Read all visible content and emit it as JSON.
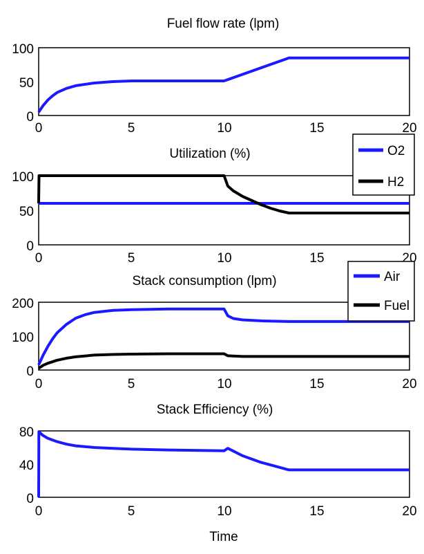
{
  "chart_data": [
    {
      "type": "line",
      "title": "Fuel flow rate (lpm)",
      "xlabel": "",
      "ylabel": "",
      "xlim": [
        0,
        20
      ],
      "ylim": [
        0,
        100
      ],
      "xticks": [
        "0",
        "5",
        "10",
        "15",
        "20"
      ],
      "yticks": [
        "0",
        "50",
        "100"
      ],
      "grid": false,
      "series": [
        {
          "color": "#1a1aff",
          "x": [
            0,
            0.25,
            0.5,
            0.75,
            1.0,
            1.5,
            2.0,
            3.0,
            4.0,
            5.0,
            7.0,
            10.0,
            13.5,
            20.0
          ],
          "y": [
            5,
            15,
            23,
            29,
            34,
            40,
            44,
            48,
            50,
            51,
            51,
            51,
            85,
            85
          ]
        }
      ]
    },
    {
      "type": "line",
      "title": "Utilization (%)",
      "xlabel": "",
      "ylabel": "",
      "xlim": [
        0,
        20
      ],
      "ylim": [
        0,
        100
      ],
      "xticks": [
        "0",
        "5",
        "10",
        "15",
        "20"
      ],
      "yticks": [
        "0",
        "50",
        "100"
      ],
      "grid": false,
      "legend": {
        "placement": "outside top-right",
        "entries": [
          "O2",
          "H2"
        ]
      },
      "series": [
        {
          "name": "O2",
          "color": "#1a1aff",
          "x": [
            0,
            20
          ],
          "y": [
            60,
            60
          ]
        },
        {
          "name": "H2",
          "color": "#000000",
          "x": [
            0,
            0.02,
            10.0,
            10.2,
            10.5,
            11.0,
            11.5,
            12.0,
            12.5,
            13.0,
            13.5,
            20.0
          ],
          "y": [
            60,
            100,
            100,
            85,
            78,
            70,
            64,
            58,
            53,
            49,
            46,
            46
          ]
        }
      ]
    },
    {
      "type": "line",
      "title": "Stack consumption (lpm)",
      "xlabel": "",
      "ylabel": "",
      "xlim": [
        0,
        20
      ],
      "ylim": [
        0,
        200
      ],
      "xticks": [
        "0",
        "5",
        "10",
        "15",
        "20"
      ],
      "yticks": [
        "0",
        "100",
        "200"
      ],
      "grid": false,
      "legend": {
        "placement": "outside top-right",
        "entries": [
          "Air",
          "Fuel"
        ]
      },
      "series": [
        {
          "name": "Air",
          "color": "#1a1aff",
          "x": [
            0,
            0.25,
            0.5,
            0.75,
            1.0,
            1.5,
            2.0,
            2.5,
            3.0,
            4.0,
            5.0,
            7.0,
            10.0,
            10.2,
            10.5,
            11.0,
            12.0,
            13.5,
            20.0
          ],
          "y": [
            15,
            45,
            70,
            92,
            110,
            135,
            153,
            163,
            170,
            176,
            178,
            180,
            180,
            160,
            152,
            148,
            145,
            143,
            143
          ]
        },
        {
          "name": "Fuel",
          "color": "#000000",
          "x": [
            0,
            0.25,
            0.5,
            1.0,
            1.5,
            2.0,
            3.0,
            4.0,
            5.0,
            7.0,
            10.0,
            10.2,
            11.0,
            13.5,
            20.0
          ],
          "y": [
            5,
            14,
            20,
            29,
            35,
            39,
            44,
            46,
            47,
            48,
            48,
            42,
            40,
            40,
            40
          ]
        }
      ]
    },
    {
      "type": "line",
      "title": "Stack Efficiency (%)",
      "xlabel": "Time",
      "ylabel": "",
      "xlim": [
        0,
        20
      ],
      "ylim": [
        0,
        80
      ],
      "xticks": [
        "0",
        "5",
        "10",
        "15",
        "20"
      ],
      "yticks": [
        "0",
        "40",
        "80"
      ],
      "grid": false,
      "series": [
        {
          "color": "#1a1aff",
          "x": [
            0,
            0.01,
            0.2,
            0.5,
            1.0,
            1.5,
            2.0,
            3.0,
            4.0,
            5.0,
            7.0,
            10.0,
            10.2,
            11.0,
            12.0,
            13.0,
            13.5,
            20.0
          ],
          "y": [
            0,
            79,
            75,
            71,
            67,
            64,
            62,
            60,
            59,
            58,
            57,
            56,
            59,
            50,
            42,
            36,
            33,
            33
          ]
        }
      ]
    }
  ]
}
